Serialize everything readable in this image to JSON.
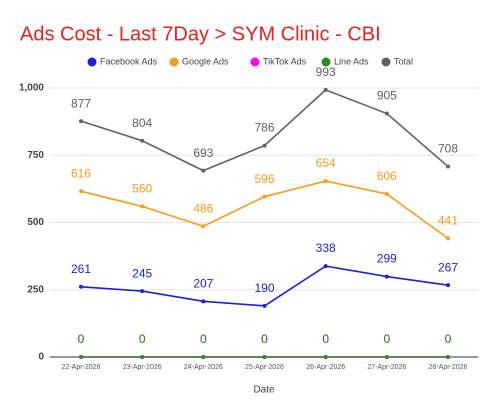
{
  "chart_data": {
    "type": "line",
    "title": "Ads Cost - Last 7Day > SYM Clinic - CBI",
    "x_label": "Date",
    "categories": [
      "22-Apr-2026",
      "23-Apr-2026",
      "24-Apr-2026",
      "25-Apr-2026",
      "26-Apr-2026",
      "27-Apr-2026",
      "28-Apr-2026"
    ],
    "series": [
      {
        "name": "Facebook Ads",
        "color": "#1f1fd6",
        "values": [
          261,
          245,
          207,
          190,
          338,
          299,
          267
        ]
      },
      {
        "name": "Google Ads",
        "color": "#f29d1b",
        "values": [
          616,
          560,
          486,
          596,
          654,
          606,
          441
        ]
      },
      {
        "name": "TikTok Ads",
        "color": "#ff00ff",
        "values": [
          0,
          0,
          0,
          0,
          0,
          0,
          0
        ]
      },
      {
        "name": "Line Ads",
        "color": "#2f8a1f",
        "values": [
          0,
          0,
          0,
          0,
          0,
          0,
          0
        ]
      },
      {
        "name": "Total",
        "color": "#616161",
        "values": [
          877,
          804,
          693,
          786,
          993,
          905,
          708
        ]
      }
    ],
    "ylim": [
      0,
      1000
    ],
    "yticks": [
      0,
      250,
      500,
      750,
      {
        "value": 1000,
        "label": "1,000"
      }
    ],
    "grid": true,
    "legend": "top"
  }
}
